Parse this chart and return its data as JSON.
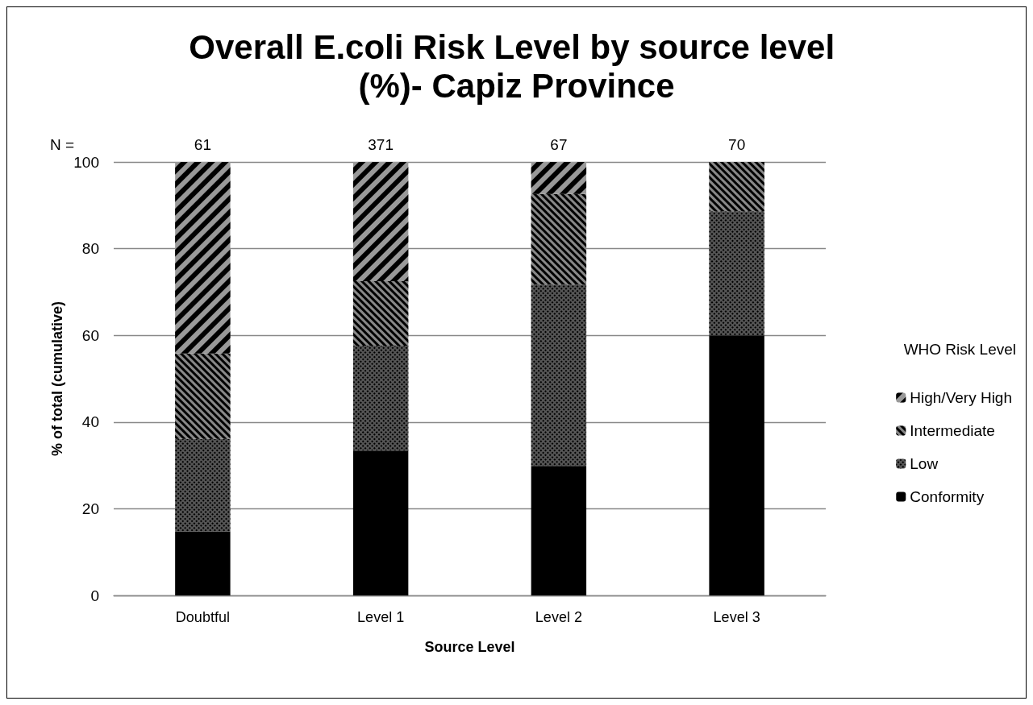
{
  "chart_data": {
    "type": "bar",
    "stacked": true,
    "title": "Overall E.coli Risk Level by source level (%)- Capiz Province",
    "xlabel": "Source Level",
    "ylabel": "% of total (cumulative)",
    "legend_title": "WHO Risk Level",
    "legend": "right",
    "grid": "y",
    "categories": [
      "Doubtful",
      "Level 1",
      "Level 2",
      "Level 3"
    ],
    "series": [
      {
        "name": "Conformity",
        "color": "#000000",
        "values": [
          14.8,
          33.4,
          29.9,
          60.0
        ]
      },
      {
        "name": "Low",
        "color": "#555555",
        "values": [
          21.3,
          24.2,
          41.8,
          28.6
        ]
      },
      {
        "name": "Intermediate",
        "color": "#888888",
        "values": [
          19.7,
          14.9,
          20.9,
          11.4
        ]
      },
      {
        "name": "High/Very High",
        "color": "#999999",
        "values": [
          44.2,
          27.5,
          7.4,
          0
        ]
      }
    ],
    "ylim": [
      0,
      100
    ],
    "yticks": [
      0,
      20,
      40,
      60,
      80,
      100
    ],
    "annotations": [
      "N =",
      "61",
      "371",
      "67",
      "70"
    ]
  }
}
